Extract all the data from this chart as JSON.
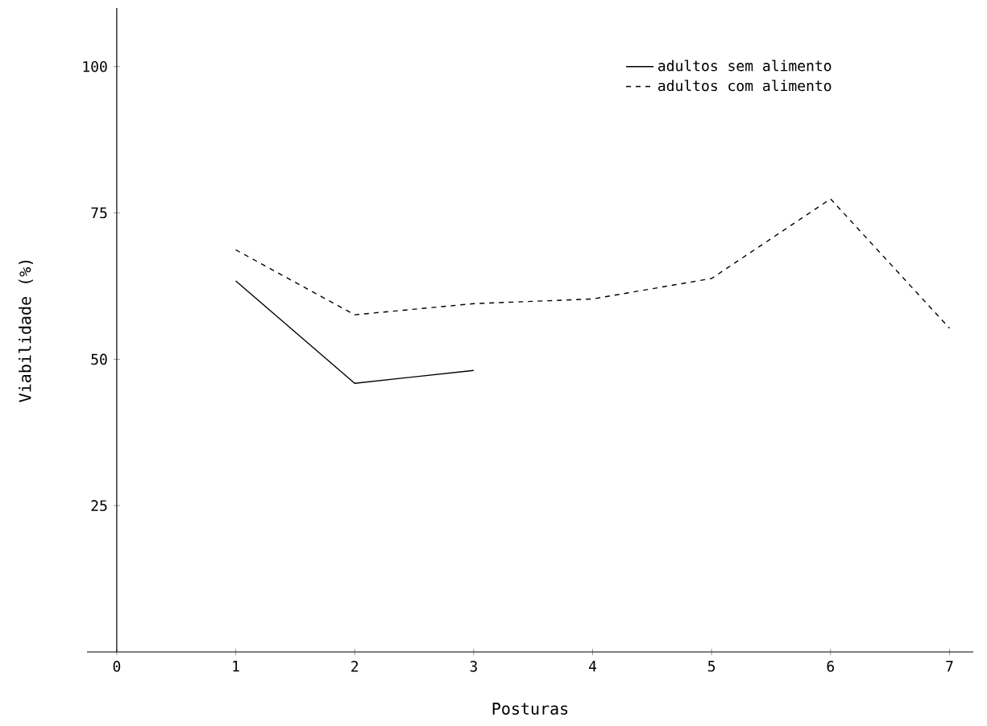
{
  "chart_data": {
    "type": "line",
    "xlabel": "Posturas",
    "ylabel": "Viabilidade  (%)",
    "x": [
      1,
      2,
      3,
      4,
      5,
      6,
      7
    ],
    "series": [
      {
        "name": "adultos sem alimento",
        "color": "#000000",
        "line_style": "solid",
        "values": [
          63.4,
          45.9,
          48.1,
          null,
          null,
          null,
          null
        ]
      },
      {
        "name": "adultos com alimento",
        "color": "#000000",
        "line_style": "dashed",
        "values": [
          68.7,
          57.6,
          59.5,
          60.3,
          63.8,
          77.4,
          55.3
        ]
      }
    ],
    "xlim": [
      -0.25,
      7.2
    ],
    "ylim": [
      0,
      110
    ],
    "xticks": [
      0,
      1,
      2,
      3,
      4,
      5,
      6,
      7
    ],
    "yticks": [
      25,
      50,
      75,
      100
    ],
    "grid": false,
    "legend": "top right",
    "marker": "none"
  }
}
